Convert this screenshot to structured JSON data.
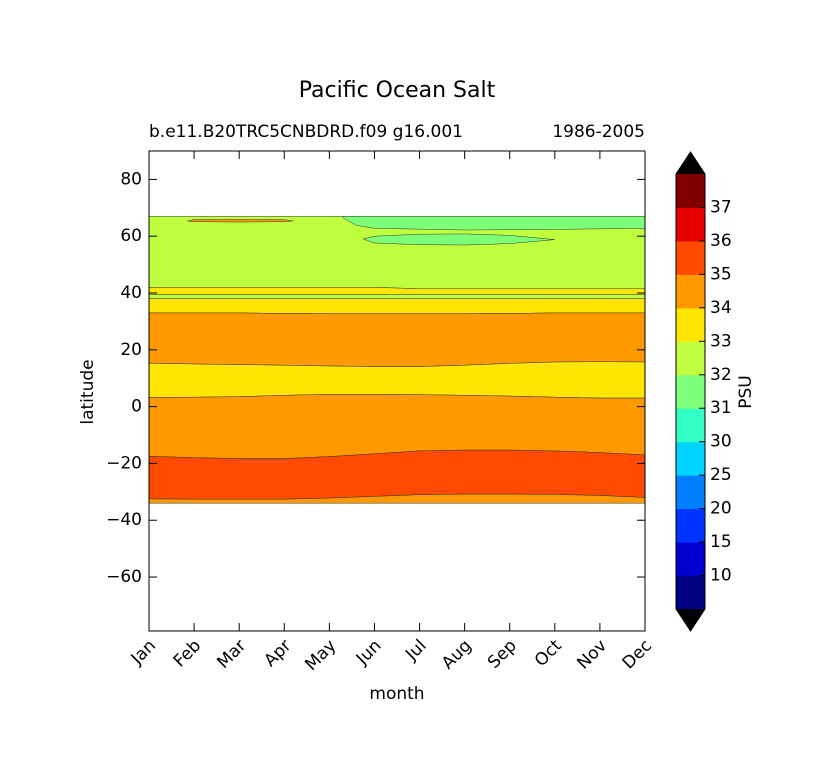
{
  "chart_data": {
    "type": "contourf",
    "title": "Pacific Ocean Salt",
    "subtitle_left": "b.e11.B20TRC5CNBDRD.f09 g16.001",
    "subtitle_right": "1986-2005",
    "xlabel": "month",
    "ylabel": "latitude",
    "categories": [
      "Jan",
      "Feb",
      "Mar",
      "Apr",
      "May",
      "Jun",
      "Jul",
      "Aug",
      "Sep",
      "Oct",
      "Nov",
      "Dec"
    ],
    "xlim": [
      0,
      11
    ],
    "ylim": [
      -79,
      90
    ],
    "yticks": [
      80,
      60,
      40,
      20,
      0,
      {
        "value": -20,
        "label": "−20"
      },
      {
        "value": -40,
        "label": "−40"
      },
      {
        "value": -60,
        "label": "−60"
      }
    ],
    "bands": [
      {
        "color": "#bfff40",
        "x": [
          0,
          1,
          2,
          3,
          4,
          5,
          6,
          7,
          8,
          9,
          10,
          11
        ],
        "lower": [
          42,
          42,
          42,
          42,
          42,
          42,
          41.5,
          41.5,
          41.5,
          41.5,
          41.5,
          41.5
        ],
        "upper": [
          67,
          67,
          67,
          67,
          67,
          67,
          67,
          67,
          67,
          67,
          67,
          67
        ]
      },
      {
        "color": "#ffe600",
        "x": [
          0,
          1,
          2,
          3,
          4,
          5,
          6,
          7,
          8,
          9,
          10,
          11
        ],
        "lower": [
          39.5,
          39.5,
          39.5,
          39.5,
          39.5,
          39.5,
          39.5,
          39.5,
          39.5,
          39.5,
          39.5,
          39.5
        ],
        "upper": [
          42,
          42,
          42,
          42,
          42,
          42,
          41.5,
          41.5,
          41.5,
          41.5,
          41.5,
          41.5
        ]
      },
      {
        "color": "#bfff40",
        "x": [
          0,
          1,
          2,
          3,
          4,
          5,
          6,
          7,
          8,
          9,
          10,
          11
        ],
        "lower": [
          38,
          38,
          38,
          38,
          38,
          38,
          38,
          38,
          38,
          38,
          38,
          38
        ],
        "upper": [
          39.5,
          39.5,
          39.5,
          39.5,
          39.5,
          39.5,
          39.5,
          39.5,
          39.5,
          39.5,
          39.5,
          39.5
        ]
      },
      {
        "color": "#ffe600",
        "x": [
          0,
          1,
          2,
          3,
          4,
          5,
          6,
          7,
          8,
          9,
          10,
          11
        ],
        "lower": [
          33,
          33,
          33,
          32.8,
          32.7,
          32.7,
          32.7,
          32.7,
          32.8,
          33,
          33,
          33
        ],
        "upper": [
          38,
          38,
          38,
          38,
          38,
          38,
          38,
          38,
          38,
          38,
          38,
          38
        ]
      },
      {
        "color": "#ff9900",
        "x": [
          0,
          1,
          2,
          3,
          4,
          5,
          6,
          7,
          8,
          9,
          10,
          11
        ],
        "lower": [
          15.3,
          15,
          14.8,
          14.6,
          14.3,
          14.1,
          14.1,
          14.6,
          15.2,
          15.7,
          15.8,
          15.7
        ],
        "upper": [
          33,
          33,
          33,
          32.8,
          32.7,
          32.7,
          32.7,
          32.7,
          32.8,
          33,
          33,
          33
        ]
      },
      {
        "color": "#ffe600",
        "x": [
          0,
          1,
          2,
          3,
          4,
          5,
          6,
          7,
          8,
          9,
          10,
          11
        ],
        "lower": [
          3.2,
          3.3,
          3.5,
          4,
          4.3,
          4.3,
          4.2,
          4,
          3.7,
          3.3,
          3,
          3
        ],
        "upper": [
          15.3,
          15,
          14.8,
          14.6,
          14.3,
          14.1,
          14.1,
          14.6,
          15.2,
          15.7,
          15.8,
          15.7
        ]
      },
      {
        "color": "#ff9900",
        "x": [
          0,
          1,
          2,
          3,
          4,
          5,
          6,
          7,
          8,
          9,
          10,
          11
        ],
        "lower": [
          -17.5,
          -18,
          -18.3,
          -18.3,
          -17.6,
          -16.6,
          -15.6,
          -15.3,
          -15.3,
          -15.6,
          -16.2,
          -17
        ],
        "upper": [
          3.2,
          3.3,
          3.5,
          4,
          4.3,
          4.3,
          4.2,
          4,
          3.7,
          3.3,
          3,
          3
        ]
      },
      {
        "color": "#ff4a00",
        "x": [
          0,
          1,
          2,
          3,
          4,
          5,
          6,
          7,
          8,
          9,
          10,
          11
        ],
        "lower": [
          -32.5,
          -32.6,
          -32.6,
          -32.6,
          -32.2,
          -31.6,
          -31,
          -30.8,
          -30.8,
          -30.9,
          -31.3,
          -32
        ],
        "upper": [
          -17.5,
          -18,
          -18.3,
          -18.3,
          -17.6,
          -16.6,
          -15.6,
          -15.3,
          -15.3,
          -15.6,
          -16.2,
          -17
        ]
      },
      {
        "color": "#ff9900",
        "x": [
          0,
          1,
          2,
          3,
          4,
          5,
          6,
          7,
          8,
          9,
          10,
          11
        ],
        "lower": [
          -34,
          -34,
          -34,
          -34,
          -34,
          -34,
          -34,
          -34,
          -34,
          -34,
          -34,
          -34
        ],
        "upper": [
          -32.5,
          -32.6,
          -32.6,
          -32.6,
          -32.2,
          -31.6,
          -31,
          -30.8,
          -30.8,
          -30.9,
          -31.3,
          -32
        ]
      },
      {
        "color": "#7dff7a",
        "x": [
          4.3,
          4.6,
          5,
          7,
          9,
          11
        ],
        "lower": [
          66.5,
          63.8,
          62.8,
          62.2,
          62.4,
          62.8
        ],
        "upper": [
          67,
          67,
          67,
          67,
          67,
          67
        ]
      },
      {
        "color": "#7dff7a",
        "x": [
          4.75,
          5,
          6,
          7,
          8,
          9
        ],
        "lower": [
          59,
          57.6,
          57,
          56.9,
          57.4,
          58.8
        ],
        "upper": [
          59,
          60,
          60.7,
          60.8,
          60.3,
          58.8
        ]
      },
      {
        "color": "#ff9900",
        "x": [
          0.85,
          1,
          2,
          3,
          3.2
        ],
        "lower": [
          65.4,
          65.1,
          65,
          65.1,
          65.4
        ],
        "upper": [
          65.4,
          65.8,
          65.9,
          65.8,
          65.4
        ]
      }
    ],
    "colorbar": {
      "label": "PSU",
      "ticks": [
        10,
        15,
        20,
        25,
        30,
        31,
        32,
        33,
        34,
        35,
        36,
        37
      ],
      "colors": [
        "#000080",
        "#0000d0",
        "#0033ff",
        "#0080ff",
        "#00d4ff",
        "#33ffc4",
        "#7dff7a",
        "#bfff40",
        "#ffe600",
        "#ff9900",
        "#ff4a00",
        "#e60000",
        "#800000"
      ],
      "extend_color": "#000000"
    }
  }
}
